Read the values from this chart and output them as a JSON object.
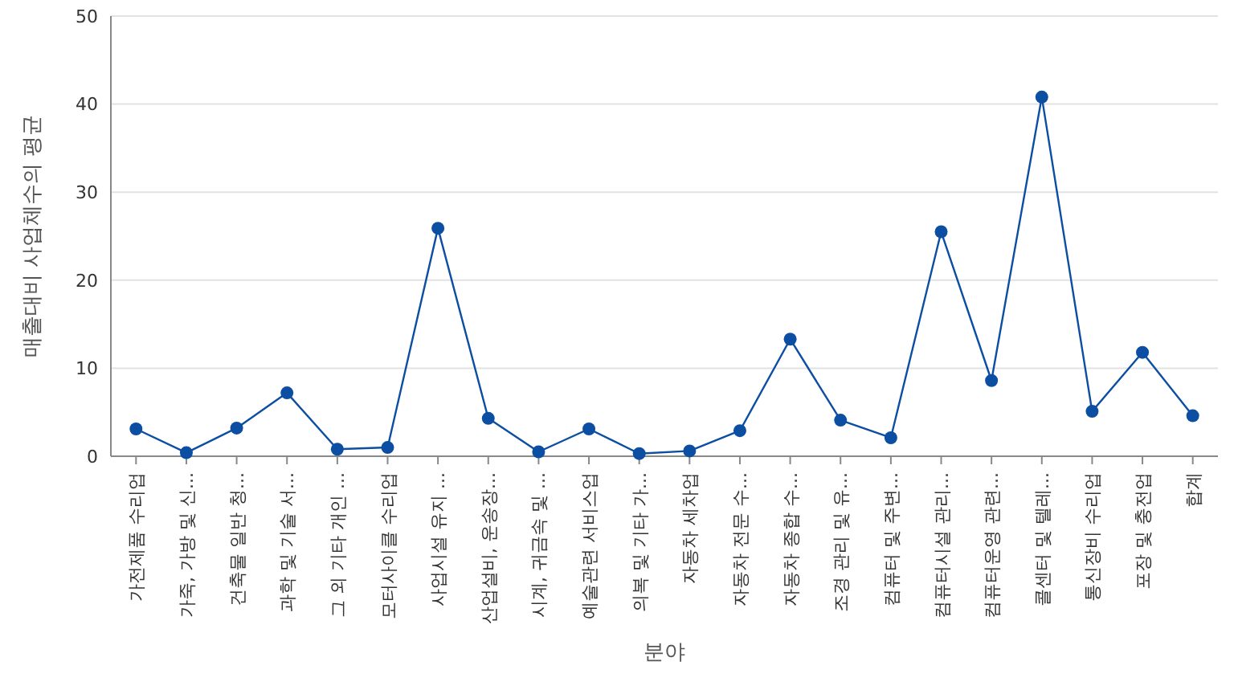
{
  "chart_data": {
    "type": "line",
    "xlabel": "분야",
    "ylabel": "매출대비 사업체수의 평균",
    "categories": [
      "가전제품 수리업",
      "가죽, 가방 및 신...",
      "건축물 일반 청...",
      "과학 및 기술 서...",
      "그 외 기타 개인 ...",
      "모터사이클 수리업",
      "사업시설 유지 ...",
      "산업설비, 운송장...",
      "시계, 귀금속 및 ...",
      "예술관련 서비스업",
      "의복 및 기타 가...",
      "자동차 세차업",
      "자동차 전문 수...",
      "자동차 종합 수...",
      "조경 관리 및 유...",
      "컴퓨터 및 주변...",
      "컴퓨터시설 관리...",
      "컴퓨터운영 관련...",
      "콜센터 및 텔레...",
      "통신장비 수리업",
      "포장 및 충전업",
      "합계"
    ],
    "series": [
      {
        "color": "#0b4ea2",
        "values": [
          3.1,
          0.4,
          3.2,
          7.2,
          0.8,
          1.0,
          25.9,
          4.3,
          0.5,
          3.1,
          0.3,
          0.6,
          2.9,
          13.3,
          4.1,
          2.1,
          25.5,
          8.6,
          40.8,
          5.1,
          11.8,
          4.6
        ]
      }
    ],
    "ylim": [
      0,
      50
    ],
    "yticks": [
      0,
      10,
      20,
      30,
      40,
      50
    ],
    "grid": "y",
    "marker": "circle",
    "line_style": "solid"
  }
}
